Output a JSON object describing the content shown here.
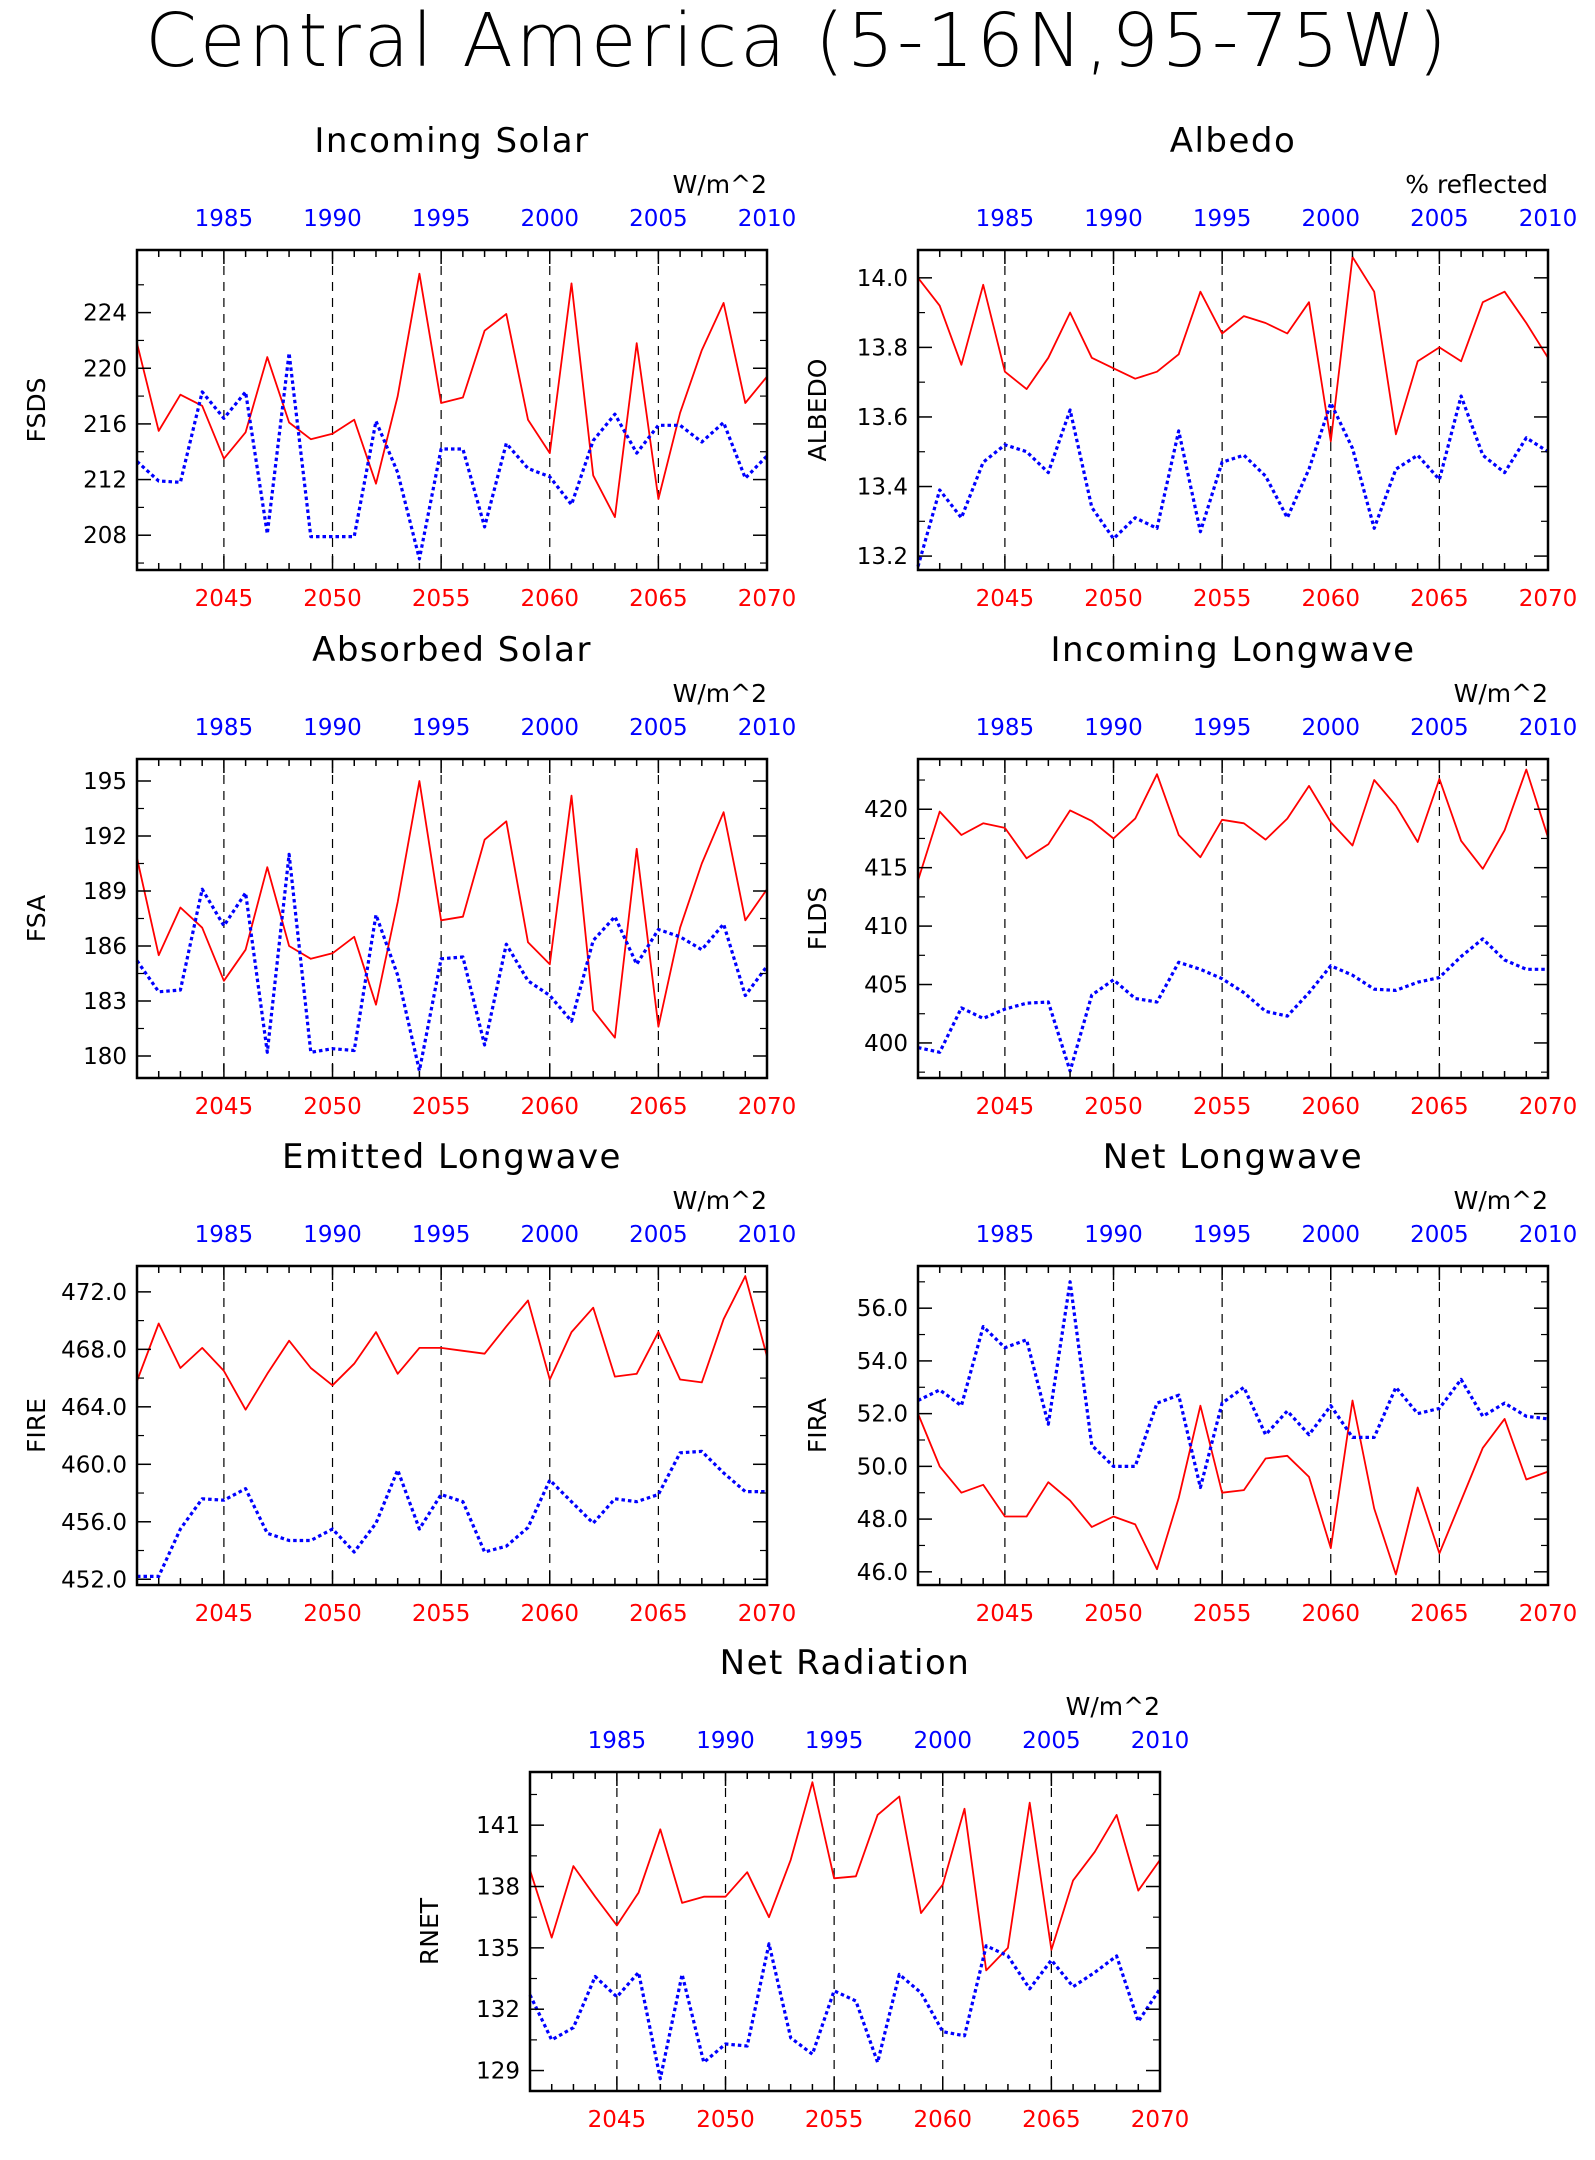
{
  "page": {
    "title": "Central America (5-16N,95-75W)",
    "colors": {
      "future": "#ff0000",
      "present": "#0000ff",
      "frame": "#000000",
      "grid": "#000000"
    }
  },
  "chart_data": [
    {
      "id": "fsds",
      "type": "line",
      "title": "Incoming Solar",
      "ylabel": "FSDS",
      "units": "W/m^2",
      "ylim": [
        205.5,
        228.5
      ],
      "yticks": [
        208,
        212,
        216,
        220,
        224
      ],
      "ytick_labels": [
        "208",
        "212",
        "216",
        "220",
        "224"
      ],
      "xlim_future": [
        2041,
        2070
      ],
      "xticks_future": [
        2045,
        2050,
        2055,
        2060,
        2065,
        2070
      ],
      "xlim_present": [
        1981,
        2010
      ],
      "xticks_present": [
        1985,
        1990,
        1995,
        2000,
        2005,
        2010
      ],
      "grid_x": [
        2045,
        2050,
        2055,
        2060,
        2065
      ],
      "series": [
        {
          "period": "future",
          "x_start": 2041,
          "values": [
            221.8,
            215.5,
            218.1,
            217.3,
            213.5,
            215.4,
            220.8,
            216.1,
            214.9,
            215.3,
            216.3,
            211.7,
            218.0,
            226.8,
            217.5,
            217.9,
            222.7,
            223.9,
            216.3,
            213.9,
            226.1,
            212.3,
            209.3,
            221.8,
            210.6,
            216.8,
            221.3,
            224.7,
            217.5,
            219.4
          ]
        },
        {
          "period": "present",
          "x_start": 1981,
          "values": [
            213.3,
            211.9,
            211.8,
            218.3,
            216.4,
            218.3,
            208.1,
            221.1,
            207.9,
            207.9,
            207.9,
            216.2,
            212.5,
            206.3,
            214.2,
            214.2,
            208.6,
            214.6,
            212.8,
            212.2,
            210.2,
            214.8,
            216.7,
            213.9,
            215.9,
            215.9,
            214.7,
            216.1,
            212.1,
            213.7
          ]
        }
      ]
    },
    {
      "id": "albedo",
      "type": "line",
      "title": "Albedo",
      "ylabel": "ALBEDO",
      "units": "% reflected",
      "ylim": [
        13.16,
        14.08
      ],
      "yticks": [
        13.2,
        13.4,
        13.6,
        13.8,
        14.0
      ],
      "ytick_labels": [
        "13.2",
        "13.4",
        "13.6",
        "13.8",
        "14.0"
      ],
      "xlim_future": [
        2041,
        2070
      ],
      "xticks_future": [
        2045,
        2050,
        2055,
        2060,
        2065,
        2070
      ],
      "xlim_present": [
        1981,
        2010
      ],
      "xticks_present": [
        1985,
        1990,
        1995,
        2000,
        2005,
        2010
      ],
      "grid_x": [
        2045,
        2050,
        2055,
        2060,
        2065
      ],
      "series": [
        {
          "period": "future",
          "x_start": 2041,
          "values": [
            14.0,
            13.92,
            13.75,
            13.98,
            13.73,
            13.68,
            13.77,
            13.9,
            13.77,
            13.74,
            13.71,
            13.73,
            13.78,
            13.96,
            13.84,
            13.89,
            13.87,
            13.84,
            13.93,
            13.53,
            14.06,
            13.96,
            13.55,
            13.76,
            13.8,
            13.76,
            13.93,
            13.96,
            13.87,
            13.77
          ]
        },
        {
          "period": "present",
          "x_start": 1981,
          "values": [
            13.17,
            13.39,
            13.31,
            13.47,
            13.52,
            13.5,
            13.44,
            13.62,
            13.34,
            13.25,
            13.31,
            13.28,
            13.56,
            13.27,
            13.47,
            13.49,
            13.43,
            13.31,
            13.45,
            13.64,
            13.51,
            13.28,
            13.45,
            13.49,
            13.42,
            13.66,
            13.49,
            13.44,
            13.54,
            13.5
          ]
        }
      ]
    },
    {
      "id": "fsa",
      "type": "line",
      "title": "Absorbed Solar",
      "ylabel": "FSA",
      "units": "W/m^2",
      "ylim": [
        178.8,
        196.2
      ],
      "yticks": [
        180,
        183,
        186,
        189,
        192,
        195
      ],
      "ytick_labels": [
        "180",
        "183",
        "186",
        "189",
        "192",
        "195"
      ],
      "xlim_future": [
        2041,
        2070
      ],
      "xticks_future": [
        2045,
        2050,
        2055,
        2060,
        2065,
        2070
      ],
      "xlim_present": [
        1981,
        2010
      ],
      "xticks_present": [
        1985,
        1990,
        1995,
        2000,
        2005,
        2010
      ],
      "grid_x": [
        2045,
        2050,
        2055,
        2060,
        2065
      ],
      "series": [
        {
          "period": "future",
          "x_start": 2041,
          "values": [
            190.8,
            185.5,
            188.1,
            187.0,
            184.1,
            185.8,
            190.3,
            186.0,
            185.3,
            185.6,
            186.5,
            182.8,
            188.4,
            195.0,
            187.4,
            187.6,
            191.8,
            192.8,
            186.2,
            185.0,
            194.2,
            182.5,
            181.0,
            191.3,
            181.6,
            187.0,
            190.5,
            193.3,
            187.4,
            189.1
          ]
        },
        {
          "period": "present",
          "x_start": 1981,
          "values": [
            185.2,
            183.5,
            183.6,
            189.1,
            187.1,
            188.9,
            180.2,
            191.0,
            180.2,
            180.4,
            180.3,
            187.7,
            184.4,
            179.2,
            185.3,
            185.4,
            180.6,
            186.1,
            184.1,
            183.3,
            181.9,
            186.3,
            187.6,
            185.0,
            186.9,
            186.5,
            185.8,
            187.2,
            183.3,
            184.9
          ]
        }
      ]
    },
    {
      "id": "flds",
      "type": "line",
      "title": "Incoming Longwave",
      "ylabel": "FLDS",
      "units": "W/m^2",
      "ylim": [
        397.0,
        424.3
      ],
      "yticks": [
        400,
        405,
        410,
        415,
        420
      ],
      "ytick_labels": [
        "400",
        "405",
        "410",
        "415",
        "420"
      ],
      "xlim_future": [
        2041,
        2070
      ],
      "xticks_future": [
        2045,
        2050,
        2055,
        2060,
        2065,
        2070
      ],
      "xlim_present": [
        1981,
        2010
      ],
      "xticks_present": [
        1985,
        1990,
        1995,
        2000,
        2005,
        2010
      ],
      "grid_x": [
        2045,
        2050,
        2055,
        2060,
        2065
      ],
      "series": [
        {
          "period": "future",
          "x_start": 2041,
          "values": [
            413.9,
            419.8,
            417.8,
            418.8,
            418.4,
            415.8,
            417.0,
            419.9,
            419.0,
            417.5,
            419.2,
            423.0,
            417.8,
            415.9,
            419.1,
            418.8,
            417.4,
            419.2,
            422.0,
            418.9,
            416.9,
            422.5,
            420.3,
            417.2,
            422.6,
            417.3,
            414.9,
            418.2,
            423.4,
            417.6
          ]
        },
        {
          "period": "present",
          "x_start": 1981,
          "values": [
            399.6,
            399.2,
            403.0,
            402.1,
            402.9,
            403.4,
            403.5,
            397.6,
            404.1,
            405.4,
            403.8,
            403.5,
            406.9,
            406.3,
            405.5,
            404.3,
            402.7,
            402.3,
            404.3,
            406.6,
            405.8,
            404.6,
            404.5,
            405.2,
            405.6,
            407.4,
            408.9,
            407.1,
            406.3,
            406.3
          ]
        }
      ]
    },
    {
      "id": "fire",
      "type": "line",
      "title": "Emitted Longwave",
      "ylabel": "FIRE",
      "units": "W/m^2",
      "ylim": [
        451.6,
        473.8
      ],
      "yticks": [
        452,
        456,
        460,
        464,
        468,
        472
      ],
      "ytick_labels": [
        "452.0",
        "456.0",
        "460.0",
        "464.0",
        "468.0",
        "472.0"
      ],
      "xlim_future": [
        2041,
        2070
      ],
      "xticks_future": [
        2045,
        2050,
        2055,
        2060,
        2065,
        2070
      ],
      "xlim_present": [
        1981,
        2010
      ],
      "xticks_present": [
        1985,
        1990,
        1995,
        2000,
        2005,
        2010
      ],
      "grid_x": [
        2045,
        2050,
        2055,
        2060,
        2065
      ],
      "series": [
        {
          "period": "future",
          "x_start": 2041,
          "values": [
            465.8,
            469.8,
            466.7,
            468.1,
            466.5,
            463.8,
            466.3,
            468.6,
            466.7,
            465.5,
            467.0,
            469.2,
            466.3,
            468.1,
            468.1,
            467.9,
            467.7,
            469.6,
            471.4,
            465.9,
            469.2,
            470.9,
            466.1,
            466.3,
            469.2,
            465.9,
            465.7,
            470.1,
            473.1,
            467.5
          ]
        },
        {
          "period": "present",
          "x_start": 1981,
          "values": [
            452.2,
            452.2,
            455.5,
            457.6,
            457.5,
            458.3,
            455.2,
            454.7,
            454.7,
            455.5,
            453.9,
            455.9,
            459.6,
            455.5,
            457.9,
            457.4,
            453.9,
            454.3,
            455.6,
            458.9,
            457.4,
            455.9,
            457.6,
            457.4,
            457.9,
            460.8,
            460.9,
            459.4,
            458.1,
            458.1
          ]
        }
      ]
    },
    {
      "id": "fira",
      "type": "line",
      "title": "Net Longwave",
      "ylabel": "FIRA",
      "units": "W/m^2",
      "ylim": [
        45.5,
        57.6
      ],
      "yticks": [
        46,
        48,
        50,
        52,
        54,
        56
      ],
      "ytick_labels": [
        "46.0",
        "48.0",
        "50.0",
        "52.0",
        "54.0",
        "56.0"
      ],
      "xlim_future": [
        2041,
        2070
      ],
      "xticks_future": [
        2045,
        2050,
        2055,
        2060,
        2065,
        2070
      ],
      "xlim_present": [
        1981,
        2010
      ],
      "xticks_present": [
        1985,
        1990,
        1995,
        2000,
        2005,
        2010
      ],
      "grid_x": [
        2045,
        2050,
        2055,
        2060,
        2065
      ],
      "series": [
        {
          "period": "future",
          "x_start": 2041,
          "values": [
            52.0,
            50.0,
            49.0,
            49.3,
            48.1,
            48.1,
            49.4,
            48.7,
            47.7,
            48.1,
            47.8,
            46.1,
            48.8,
            52.3,
            49.0,
            49.1,
            50.3,
            50.4,
            49.6,
            46.9,
            52.5,
            48.4,
            45.9,
            49.2,
            46.7,
            48.7,
            50.7,
            51.8,
            49.5,
            49.8
          ]
        },
        {
          "period": "present",
          "x_start": 1981,
          "values": [
            52.5,
            52.9,
            52.3,
            55.3,
            54.5,
            54.8,
            51.6,
            57.0,
            50.8,
            50.0,
            50.0,
            52.4,
            52.7,
            49.2,
            52.4,
            53.0,
            51.2,
            52.1,
            51.2,
            52.3,
            51.1,
            51.1,
            53.0,
            52.0,
            52.2,
            53.3,
            51.9,
            52.4,
            51.9,
            51.8
          ]
        }
      ]
    },
    {
      "id": "rnet",
      "type": "line",
      "title": "Net Radiation",
      "ylabel": "RNET",
      "units": "W/m^2",
      "ylim": [
        128.0,
        143.6
      ],
      "yticks": [
        129,
        132,
        135,
        138,
        141
      ],
      "ytick_labels": [
        "129",
        "132",
        "135",
        "138",
        "141"
      ],
      "xlim_future": [
        2041,
        2070
      ],
      "xticks_future": [
        2045,
        2050,
        2055,
        2060,
        2065,
        2070
      ],
      "xlim_present": [
        1981,
        2010
      ],
      "xticks_present": [
        1985,
        1990,
        1995,
        2000,
        2005,
        2010
      ],
      "grid_x": [
        2045,
        2050,
        2055,
        2060,
        2065
      ],
      "series": [
        {
          "period": "future",
          "x_start": 2041,
          "values": [
            138.8,
            135.5,
            139.0,
            137.5,
            136.1,
            137.7,
            140.8,
            137.2,
            137.5,
            137.5,
            138.7,
            136.5,
            139.3,
            143.1,
            138.4,
            138.5,
            141.5,
            142.4,
            136.7,
            138.1,
            141.8,
            133.9,
            135.0,
            142.1,
            134.9,
            138.3,
            139.7,
            141.5,
            137.8,
            139.3
          ]
        },
        {
          "period": "present",
          "x_start": 1981,
          "values": [
            132.7,
            130.5,
            131.1,
            133.6,
            132.6,
            133.8,
            128.6,
            133.7,
            129.4,
            130.3,
            130.2,
            135.2,
            130.6,
            129.8,
            132.9,
            132.4,
            129.4,
            133.7,
            132.8,
            130.9,
            130.7,
            135.1,
            134.6,
            133.0,
            134.4,
            133.1,
            133.8,
            134.6,
            131.4,
            133.0
          ]
        }
      ]
    }
  ]
}
